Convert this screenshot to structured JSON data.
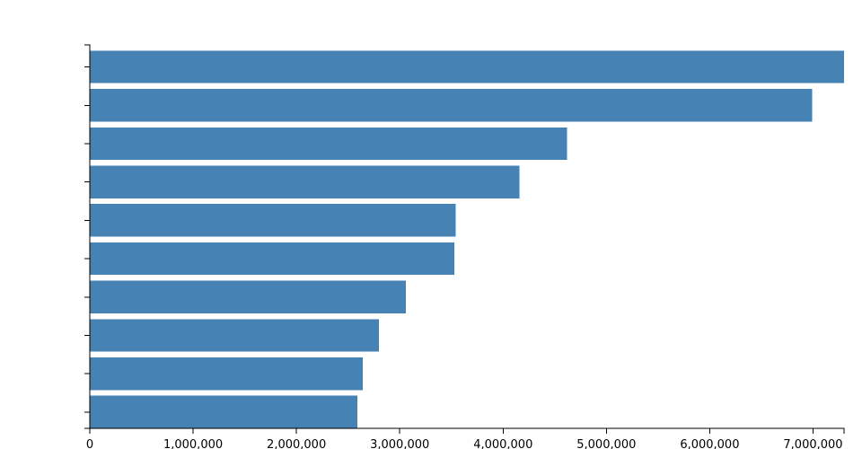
{
  "chart_data": {
    "type": "bar",
    "orientation": "horizontal",
    "title": "",
    "xlabel": "",
    "ylabel": "",
    "categories": [
      "",
      "",
      "",
      "",
      "",
      "",
      "",
      "",
      "",
      ""
    ],
    "values": [
      7300000,
      6990000,
      4620000,
      4160000,
      3540000,
      3530000,
      3060000,
      2800000,
      2640000,
      2590000
    ],
    "xlim": [
      0,
      7300000
    ],
    "x_ticks": [
      0,
      1000000,
      2000000,
      3000000,
      4000000,
      5000000,
      6000000,
      7000000
    ],
    "x_tick_labels": [
      "0",
      "1,000,000",
      "2,000,000",
      "3,000,000",
      "4,000,000",
      "5,000,000",
      "6,000,000",
      "7,000,000"
    ],
    "bar_color": "#4682b4",
    "grid": false,
    "legend": "none"
  }
}
